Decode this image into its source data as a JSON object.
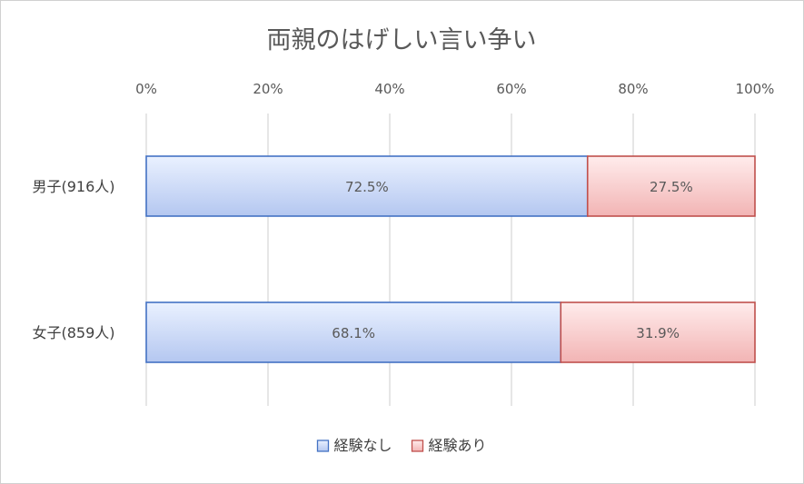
{
  "chart_data": {
    "type": "bar",
    "orientation": "horizontal",
    "stacked": "percent",
    "title": "両親のはげしい言い争い",
    "categories": [
      "男子(916人)",
      "女子(859人)"
    ],
    "series": [
      {
        "name": "経験なし",
        "values": [
          72.5,
          68.1
        ],
        "labels": [
          "72.5%",
          "68.1%"
        ],
        "color": "#4472c4",
        "fill_light": "#eaf1ff",
        "fill_dark": "#b4c7f0"
      },
      {
        "name": "経験あり",
        "values": [
          27.5,
          31.9
        ],
        "labels": [
          "27.5%",
          "31.9%"
        ],
        "color": "#c0504d",
        "fill_light": "#ffecec",
        "fill_dark": "#f2b4b4"
      }
    ],
    "xlim": [
      0,
      100
    ],
    "xticks": [
      0,
      20,
      40,
      60,
      80,
      100
    ],
    "xtick_labels": [
      "0%",
      "20%",
      "40%",
      "60%",
      "80%",
      "100%"
    ],
    "axis_position": "top",
    "grid": true,
    "legend_position": "bottom"
  }
}
